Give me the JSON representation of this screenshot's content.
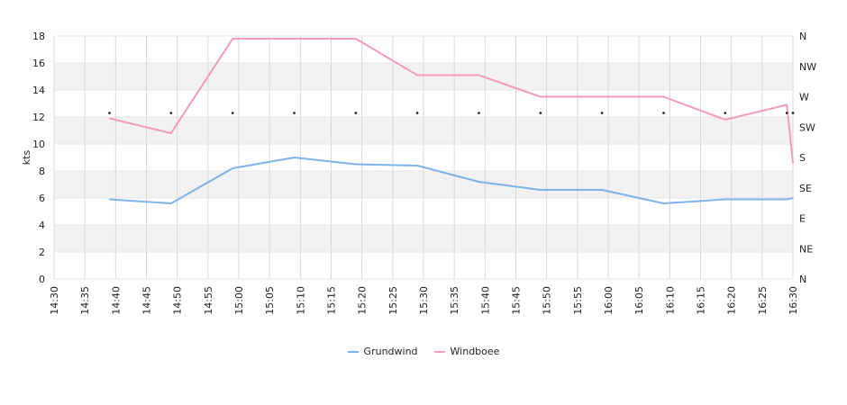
{
  "chart_data": {
    "type": "line",
    "title": "",
    "xlabel": "",
    "ylabel": "kts",
    "ylim": [
      0,
      18
    ],
    "yticks": [
      0,
      2,
      4,
      6,
      8,
      10,
      12,
      14,
      16,
      18
    ],
    "right_axis_labels": [
      "N",
      "NE",
      "E",
      "SE",
      "S",
      "SW",
      "W",
      "NW",
      "N"
    ],
    "x_tick_labels": [
      "14:30",
      "14:35",
      "14:40",
      "14:45",
      "14:50",
      "14:55",
      "15:00",
      "15:05",
      "15:10",
      "15:15",
      "15:20",
      "15:25",
      "15:30",
      "15:35",
      "15:40",
      "15:45",
      "15:50",
      "15:55",
      "16:00",
      "16:05",
      "16:10",
      "16:15",
      "16:20",
      "16:25",
      "16:30"
    ],
    "grid": true,
    "legend_position": "bottom-center",
    "series": [
      {
        "name": "Grundwind",
        "color": "#7cb5ec",
        "x": [
          "14:39",
          "14:49",
          "14:59",
          "15:09",
          "15:19",
          "15:29",
          "15:39",
          "15:49",
          "15:59",
          "16:09",
          "16:19",
          "16:29",
          "16:30"
        ],
        "values": [
          5.9,
          5.6,
          8.2,
          9.0,
          8.5,
          8.4,
          7.2,
          6.6,
          6.6,
          5.6,
          5.9,
          5.9,
          6.0
        ]
      },
      {
        "name": "Windboee",
        "color": "#f49ac1",
        "x": [
          "14:39",
          "14:49",
          "14:59",
          "15:09",
          "15:19",
          "15:29",
          "15:39",
          "15:49",
          "15:59",
          "16:09",
          "16:19",
          "16:29",
          "16:30"
        ],
        "values": [
          11.9,
          10.8,
          17.8,
          17.8,
          17.8,
          15.1,
          15.1,
          13.5,
          13.5,
          13.5,
          11.8,
          12.9,
          8.6
        ]
      }
    ],
    "direction_markers": {
      "x": [
        "14:39",
        "14:49",
        "14:59",
        "15:09",
        "15:19",
        "15:29",
        "15:39",
        "15:49",
        "15:59",
        "16:09",
        "16:19",
        "16:29",
        "16:30"
      ],
      "y": 12.3
    }
  }
}
